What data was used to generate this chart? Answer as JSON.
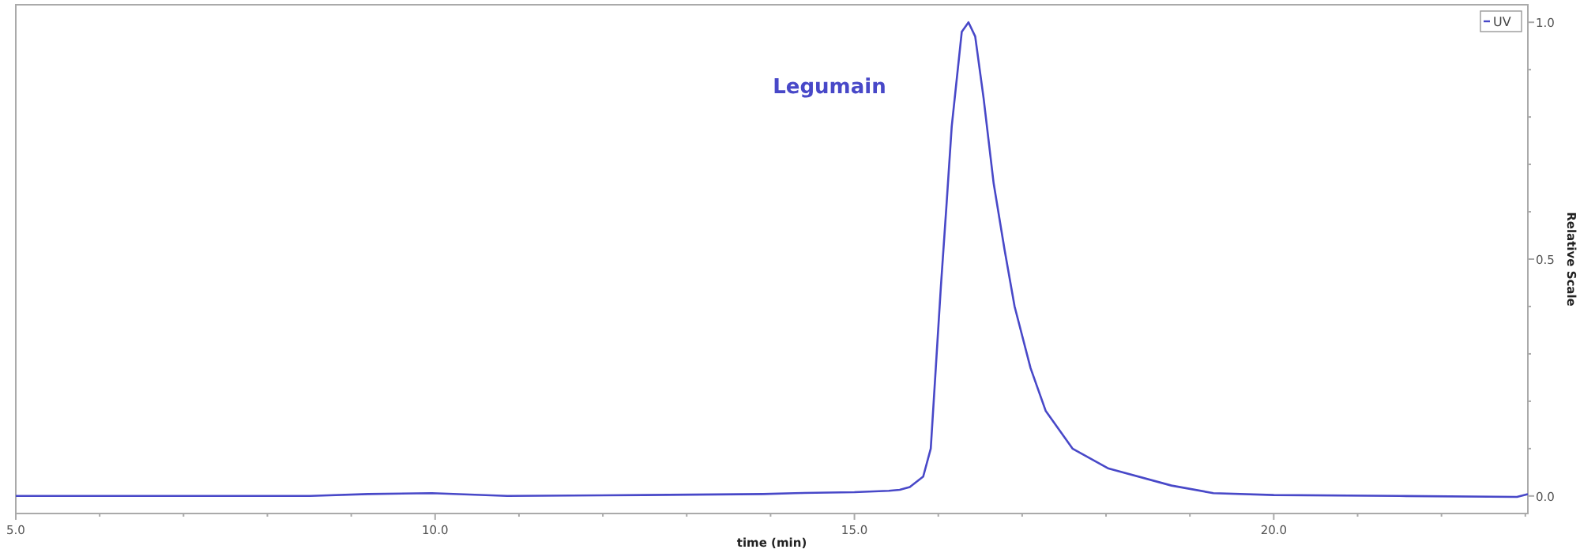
{
  "chart_data": {
    "type": "line",
    "xlabel": "time (min)",
    "ylabel": "Relative Scale",
    "legend": "top right",
    "grid": false,
    "marker": "none",
    "line_style": "solid",
    "xlim": [
      5,
      23.03
    ],
    "ylim": [
      -0.037,
      1.037
    ],
    "xticks": [
      {
        "value": 5,
        "label": "5.0"
      },
      {
        "value": 6,
        "label": null
      },
      {
        "value": 7,
        "label": null
      },
      {
        "value": 8,
        "label": null
      },
      {
        "value": 9,
        "label": null
      },
      {
        "value": 10,
        "label": "10.0"
      },
      {
        "value": 11,
        "label": null
      },
      {
        "value": 12,
        "label": null
      },
      {
        "value": 13,
        "label": null
      },
      {
        "value": 14,
        "label": null
      },
      {
        "value": 15,
        "label": "15.0"
      },
      {
        "value": 16,
        "label": null
      },
      {
        "value": 17,
        "label": null
      },
      {
        "value": 18,
        "label": null
      },
      {
        "value": 19,
        "label": null
      },
      {
        "value": 20,
        "label": "20.0"
      },
      {
        "value": 21,
        "label": null
      },
      {
        "value": 22,
        "label": null
      },
      {
        "value": 23,
        "label": null
      }
    ],
    "yticks": [
      {
        "value": 0,
        "label": "0.0"
      },
      {
        "value": 0.1,
        "label": null
      },
      {
        "value": 0.2,
        "label": null
      },
      {
        "value": 0.3,
        "label": null
      },
      {
        "value": 0.4,
        "label": null
      },
      {
        "value": 0.5,
        "label": "0.5"
      },
      {
        "value": 0.6,
        "label": null
      },
      {
        "value": 0.7,
        "label": null
      },
      {
        "value": 0.8,
        "label": null
      },
      {
        "value": 0.9,
        "label": null
      },
      {
        "value": 1,
        "label": "1.0"
      }
    ],
    "annotations": [
      "Legumain"
    ],
    "series": [
      {
        "name": "UV",
        "color": "#4848c8",
        "x": [
          5,
          8.51,
          9.2,
          9.96,
          10.86,
          12.5,
          13.91,
          14.29,
          15.0,
          15.41,
          15.54,
          15.66,
          15.82,
          15.91,
          15.97,
          16.03,
          16.1,
          16.16,
          16.22,
          16.28,
          16.36,
          16.44,
          16.54,
          16.66,
          16.79,
          16.91,
          17.1,
          17.28,
          17.6,
          18.03,
          18.78,
          19.28,
          20.0,
          21.5,
          22.9,
          23.03
        ],
        "values": [
          0,
          0,
          0.004,
          0.006,
          0.0,
          0.002,
          0.004,
          0.006,
          0.008,
          0.011,
          0.013,
          0.019,
          0.041,
          0.1,
          0.27,
          0.44,
          0.62,
          0.78,
          0.88,
          0.98,
          1.0,
          0.97,
          0.84,
          0.66,
          0.52,
          0.4,
          0.27,
          0.18,
          0.1,
          0.058,
          0.022,
          0.006,
          0.002,
          0.0,
          -0.002,
          0.004
        ]
      }
    ]
  }
}
